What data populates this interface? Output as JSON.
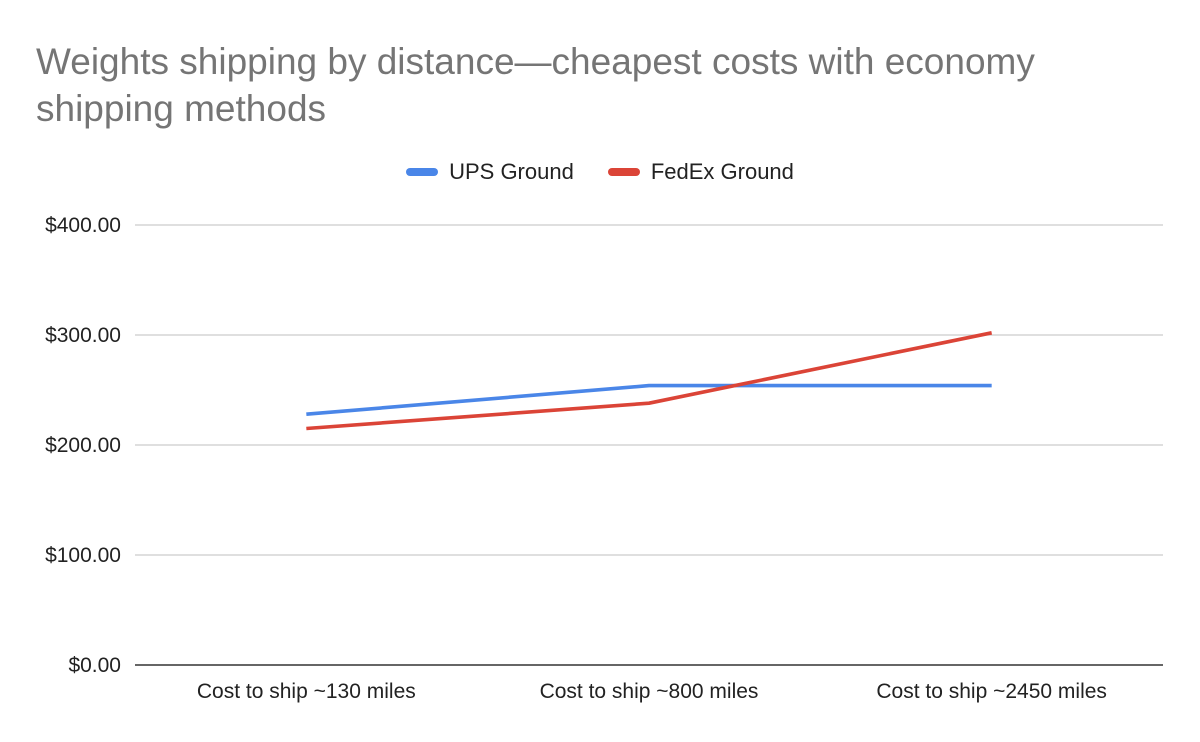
{
  "chart_data": {
    "type": "line",
    "title": "Weights shipping by distance—cheapest costs with economy shipping methods",
    "xlabel": "",
    "ylabel": "",
    "categories": [
      "Cost to ship ~130 miles",
      "Cost to ship ~800 miles",
      "Cost to ship ~2450 miles"
    ],
    "series": [
      {
        "name": "UPS Ground",
        "color": "#4a86e8",
        "values": [
          228,
          254,
          254
        ]
      },
      {
        "name": "FedEx Ground",
        "color": "#db4437",
        "values": [
          215,
          238,
          302
        ]
      }
    ],
    "ylim": [
      0,
      400
    ],
    "yticks": [
      0,
      100,
      200,
      300,
      400
    ],
    "ytick_labels": [
      "$0.00",
      "$100.00",
      "$200.00",
      "$300.00",
      "$400.00"
    ],
    "grid": true,
    "legend_position": "top"
  }
}
